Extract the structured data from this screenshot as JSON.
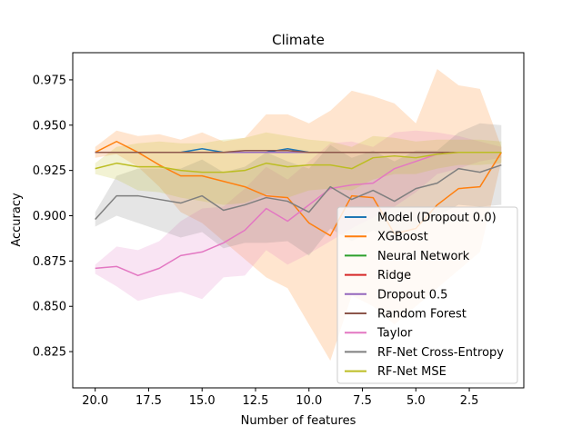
{
  "chart_data": {
    "type": "line",
    "title": "Climate",
    "xlabel": "Number of features",
    "ylabel": "Accuracy",
    "xlim": [
      21.05,
      -0.05
    ],
    "ylim": [
      0.805,
      0.99
    ],
    "x_inverted": true,
    "xticks": [
      20.0,
      17.5,
      15.0,
      12.5,
      10.0,
      7.5,
      5.0,
      2.5
    ],
    "xtick_labels": [
      "20.0",
      "17.5",
      "15.0",
      "12.5",
      "10.0",
      "7.5",
      "5.0",
      "2.5"
    ],
    "yticks": [
      0.825,
      0.85,
      0.875,
      0.9,
      0.925,
      0.95,
      0.975
    ],
    "ytick_labels": [
      "0.825",
      "0.850",
      "0.875",
      "0.900",
      "0.925",
      "0.950",
      "0.975"
    ],
    "legend_position": "lower-right",
    "x": [
      20,
      19,
      18,
      17,
      16,
      15,
      14,
      13,
      12,
      11,
      10,
      9,
      8,
      7,
      6,
      5,
      4,
      3,
      2,
      1
    ],
    "series": [
      {
        "name": "Model (Dropout 0.0)",
        "color": "#1f77b4",
        "values": [
          0.935,
          0.935,
          0.935,
          0.935,
          0.935,
          0.937,
          0.935,
          0.935,
          0.935,
          0.937,
          0.935,
          0.935,
          0.935,
          0.935,
          0.935,
          0.935,
          0.935,
          0.935,
          0.935,
          0.935
        ],
        "lower": [
          0.935,
          0.935,
          0.935,
          0.935,
          0.935,
          0.935,
          0.935,
          0.935,
          0.935,
          0.935,
          0.935,
          0.935,
          0.935,
          0.935,
          0.935,
          0.935,
          0.935,
          0.935,
          0.935,
          0.935
        ],
        "upper": [
          0.935,
          0.935,
          0.935,
          0.935,
          0.935,
          0.935,
          0.935,
          0.935,
          0.935,
          0.935,
          0.935,
          0.935,
          0.935,
          0.935,
          0.935,
          0.935,
          0.935,
          0.935,
          0.935,
          0.935
        ]
      },
      {
        "name": "XGBoost",
        "color": "#ff7f0e",
        "values": [
          0.935,
          0.941,
          0.935,
          0.928,
          0.922,
          0.922,
          0.919,
          0.916,
          0.911,
          0.91,
          0.896,
          0.889,
          0.911,
          0.91,
          0.89,
          0.893,
          0.906,
          0.915,
          0.916,
          0.935
        ],
        "lower": [
          0.932,
          0.934,
          0.927,
          0.916,
          0.902,
          0.896,
          0.886,
          0.876,
          0.866,
          0.86,
          0.84,
          0.82,
          0.856,
          0.85,
          0.84,
          0.85,
          0.86,
          0.87,
          0.88,
          0.93
        ],
        "upper": [
          0.938,
          0.947,
          0.944,
          0.945,
          0.942,
          0.946,
          0.941,
          0.943,
          0.956,
          0.956,
          0.951,
          0.958,
          0.969,
          0.966,
          0.962,
          0.951,
          0.981,
          0.972,
          0.97,
          0.938
        ]
      },
      {
        "name": "Neural Network",
        "color": "#2ca02c",
        "values": [
          0.935,
          0.935,
          0.935,
          0.935,
          0.935,
          0.935,
          0.935,
          0.935,
          0.935,
          0.935,
          0.935,
          0.935,
          0.935,
          0.935,
          0.935,
          0.935,
          0.935,
          0.935,
          0.935,
          0.935
        ],
        "lower": [
          0.935,
          0.935,
          0.935,
          0.935,
          0.935,
          0.935,
          0.935,
          0.935,
          0.935,
          0.935,
          0.935,
          0.935,
          0.935,
          0.935,
          0.935,
          0.935,
          0.935,
          0.935,
          0.935,
          0.935
        ],
        "upper": [
          0.935,
          0.935,
          0.935,
          0.935,
          0.935,
          0.935,
          0.935,
          0.935,
          0.935,
          0.935,
          0.935,
          0.935,
          0.935,
          0.935,
          0.935,
          0.935,
          0.935,
          0.935,
          0.935,
          0.935
        ]
      },
      {
        "name": "Ridge",
        "color": "#d62728",
        "values": [
          0.935,
          0.935,
          0.935,
          0.935,
          0.935,
          0.935,
          0.935,
          0.935,
          0.935,
          0.935,
          0.935,
          0.935,
          0.935,
          0.935,
          0.935,
          0.935,
          0.935,
          0.935,
          0.935,
          0.935
        ],
        "lower": [
          0.935,
          0.935,
          0.935,
          0.935,
          0.935,
          0.935,
          0.935,
          0.935,
          0.935,
          0.935,
          0.935,
          0.935,
          0.935,
          0.935,
          0.935,
          0.935,
          0.935,
          0.935,
          0.935,
          0.935
        ],
        "upper": [
          0.935,
          0.935,
          0.935,
          0.935,
          0.935,
          0.935,
          0.935,
          0.935,
          0.935,
          0.935,
          0.935,
          0.935,
          0.935,
          0.935,
          0.935,
          0.935,
          0.935,
          0.935,
          0.935,
          0.935
        ]
      },
      {
        "name": "Dropout 0.5",
        "color": "#9467bd",
        "values": [
          0.935,
          0.935,
          0.935,
          0.935,
          0.935,
          0.935,
          0.935,
          0.935,
          0.935,
          0.935,
          0.935,
          0.935,
          0.935,
          0.935,
          0.935,
          0.935,
          0.935,
          0.935,
          0.935,
          0.935
        ],
        "lower": [
          0.935,
          0.935,
          0.935,
          0.935,
          0.935,
          0.935,
          0.935,
          0.935,
          0.935,
          0.935,
          0.935,
          0.935,
          0.935,
          0.935,
          0.935,
          0.935,
          0.935,
          0.935,
          0.935,
          0.935
        ],
        "upper": [
          0.935,
          0.935,
          0.935,
          0.935,
          0.935,
          0.935,
          0.935,
          0.935,
          0.935,
          0.935,
          0.935,
          0.935,
          0.935,
          0.935,
          0.935,
          0.935,
          0.935,
          0.935,
          0.935,
          0.935
        ]
      },
      {
        "name": "Random Forest",
        "color": "#8c564b",
        "values": [
          0.935,
          0.935,
          0.935,
          0.935,
          0.935,
          0.935,
          0.935,
          0.936,
          0.936,
          0.936,
          0.935,
          0.935,
          0.935,
          0.935,
          0.935,
          0.935,
          0.935,
          0.935,
          0.935,
          0.935
        ],
        "lower": [
          0.935,
          0.935,
          0.935,
          0.935,
          0.935,
          0.935,
          0.935,
          0.935,
          0.935,
          0.935,
          0.935,
          0.935,
          0.935,
          0.935,
          0.935,
          0.935,
          0.935,
          0.935,
          0.935,
          0.935
        ],
        "upper": [
          0.935,
          0.935,
          0.935,
          0.935,
          0.935,
          0.935,
          0.935,
          0.935,
          0.935,
          0.935,
          0.935,
          0.935,
          0.935,
          0.935,
          0.935,
          0.935,
          0.935,
          0.935,
          0.935,
          0.935
        ]
      },
      {
        "name": "Taylor",
        "color": "#e377c2",
        "values": [
          0.871,
          0.872,
          0.867,
          0.871,
          0.878,
          0.88,
          0.885,
          0.892,
          0.904,
          0.897,
          0.906,
          0.915,
          0.917,
          0.918,
          0.926,
          0.93,
          0.934,
          0.935,
          0.935,
          0.935
        ],
        "lower": [
          0.868,
          0.861,
          0.853,
          0.856,
          0.858,
          0.854,
          0.866,
          0.867,
          0.881,
          0.873,
          0.879,
          0.886,
          0.893,
          0.899,
          0.905,
          0.913,
          0.923,
          0.926,
          0.93,
          0.932
        ],
        "upper": [
          0.873,
          0.883,
          0.881,
          0.886,
          0.897,
          0.904,
          0.905,
          0.915,
          0.927,
          0.92,
          0.93,
          0.94,
          0.941,
          0.938,
          0.946,
          0.947,
          0.946,
          0.944,
          0.941,
          0.938
        ]
      },
      {
        "name": "RF-Net Cross-Entropy",
        "color": "#7f7f7f",
        "values": [
          0.898,
          0.911,
          0.911,
          0.909,
          0.907,
          0.911,
          0.903,
          0.906,
          0.91,
          0.908,
          0.902,
          0.916,
          0.909,
          0.914,
          0.908,
          0.915,
          0.918,
          0.926,
          0.924,
          0.928
        ],
        "lower": [
          0.894,
          0.9,
          0.896,
          0.892,
          0.888,
          0.891,
          0.882,
          0.885,
          0.885,
          0.886,
          0.878,
          0.893,
          0.886,
          0.892,
          0.886,
          0.894,
          0.9,
          0.906,
          0.905,
          0.906
        ],
        "upper": [
          0.902,
          0.922,
          0.926,
          0.926,
          0.926,
          0.931,
          0.924,
          0.927,
          0.935,
          0.93,
          0.926,
          0.939,
          0.932,
          0.936,
          0.93,
          0.936,
          0.936,
          0.946,
          0.951,
          0.95
        ]
      },
      {
        "name": "RF-Net MSE",
        "color": "#bcbd22",
        "values": [
          0.926,
          0.929,
          0.927,
          0.927,
          0.925,
          0.924,
          0.924,
          0.925,
          0.929,
          0.927,
          0.928,
          0.928,
          0.926,
          0.932,
          0.933,
          0.932,
          0.934,
          0.935,
          0.935,
          0.935
        ],
        "lower": [
          0.923,
          0.92,
          0.914,
          0.913,
          0.91,
          0.908,
          0.906,
          0.907,
          0.912,
          0.91,
          0.914,
          0.915,
          0.914,
          0.92,
          0.923,
          0.923,
          0.926,
          0.928,
          0.928,
          0.929
        ],
        "upper": [
          0.929,
          0.938,
          0.94,
          0.941,
          0.94,
          0.94,
          0.942,
          0.943,
          0.946,
          0.944,
          0.942,
          0.941,
          0.938,
          0.944,
          0.943,
          0.941,
          0.942,
          0.942,
          0.942,
          0.941
        ]
      }
    ]
  }
}
